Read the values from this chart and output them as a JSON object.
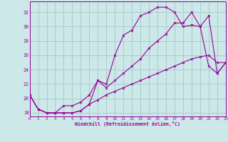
{
  "xlabel": "Windchill (Refroidissement éolien,°C)",
  "bg_color": "#cce8e8",
  "grid_color": "#aacccc",
  "line_color": "#990099",
  "x_ticks": [
    0,
    1,
    2,
    3,
    4,
    5,
    6,
    7,
    8,
    9,
    10,
    11,
    12,
    13,
    14,
    15,
    16,
    17,
    18,
    19,
    20,
    21,
    22,
    23
  ],
  "y_ticks": [
    18,
    20,
    22,
    24,
    26,
    28,
    30,
    32
  ],
  "xlim": [
    0,
    23
  ],
  "ylim": [
    17.5,
    33.5
  ],
  "series1_x": [
    0,
    1,
    2,
    3,
    4,
    5,
    6,
    7,
    8,
    9,
    10,
    11,
    12,
    13,
    14,
    15,
    16,
    17,
    18,
    19,
    20,
    21,
    22,
    23
  ],
  "series1_y": [
    20.5,
    18.5,
    18.0,
    18.0,
    18.0,
    18.0,
    18.3,
    19.2,
    19.8,
    20.5,
    21.0,
    21.5,
    22.0,
    22.5,
    23.0,
    23.5,
    24.0,
    24.5,
    25.0,
    25.5,
    25.8,
    26.0,
    25.0,
    25.0
  ],
  "series2_x": [
    0,
    1,
    2,
    3,
    4,
    5,
    6,
    7,
    8,
    9,
    10,
    11,
    12,
    13,
    14,
    15,
    16,
    17,
    18,
    19,
    20,
    21,
    22,
    23
  ],
  "series2_y": [
    20.5,
    18.5,
    18.0,
    18.0,
    19.0,
    19.0,
    19.5,
    20.5,
    22.5,
    22.0,
    26.0,
    28.8,
    29.5,
    31.5,
    32.0,
    32.7,
    32.7,
    32.0,
    30.0,
    30.2,
    30.0,
    31.5,
    23.5,
    25.0
  ],
  "series3_x": [
    0,
    1,
    2,
    3,
    4,
    5,
    6,
    7,
    8,
    9,
    10,
    11,
    12,
    13,
    14,
    15,
    16,
    17,
    18,
    19,
    20,
    21,
    22,
    23
  ],
  "series3_y": [
    20.5,
    18.5,
    18.0,
    18.0,
    18.0,
    18.0,
    18.3,
    19.2,
    22.5,
    21.5,
    22.5,
    23.5,
    24.5,
    25.5,
    27.0,
    28.0,
    29.0,
    30.5,
    30.5,
    32.0,
    30.0,
    24.5,
    23.5,
    25.0
  ]
}
